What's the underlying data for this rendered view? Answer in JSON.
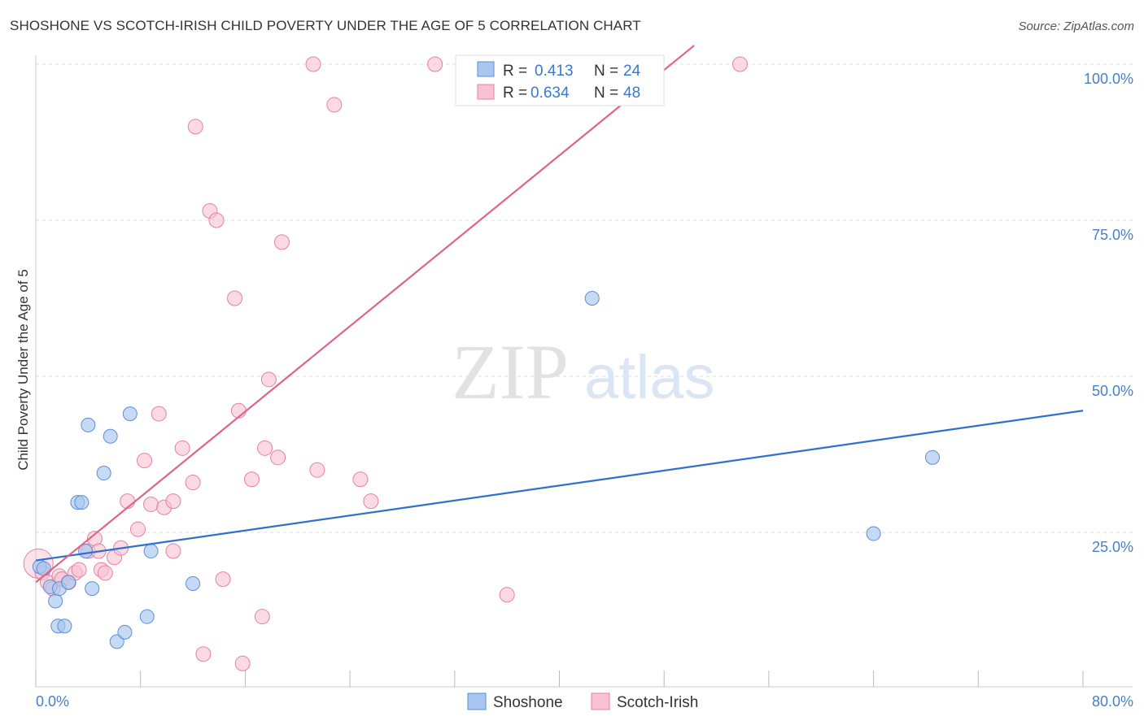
{
  "header": {
    "title": "SHOSHONE VS SCOTCH-IRISH CHILD POVERTY UNDER THE AGE OF 5 CORRELATION CHART",
    "source": "Source: ZipAtlas.com"
  },
  "watermark": {
    "zip": "ZIP",
    "atlas": "atlas"
  },
  "colors": {
    "shoshone_fill": "#a8c6f0",
    "shoshone_stroke": "#5b8fd8",
    "shoshone_line": "#2f6fd0",
    "scotch_fill": "#f8c2d2",
    "scotch_stroke": "#e87fa0",
    "scotch_line": "#e0638a",
    "tick_label": "#4a7fc8",
    "grid": "#dddddd"
  },
  "stats_legend": {
    "rows": [
      {
        "r_label": "R = ",
        "r_value": "0.413",
        "n_label": "N = ",
        "n_value": "24"
      },
      {
        "r_label": "R = ",
        "r_value": "0.634",
        "n_label": "N = ",
        "n_value": "48"
      }
    ]
  },
  "chart_data": {
    "type": "scatter",
    "title": "SHOSHONE VS SCOTCH-IRISH CHILD POVERTY UNDER THE AGE OF 5 CORRELATION CHART",
    "xlabel": "",
    "ylabel": "Child Poverty Under the Age of 5",
    "xlim": [
      0,
      80
    ],
    "ylim": [
      0,
      103
    ],
    "x_tick_labels": [
      "0.0%",
      "80.0%"
    ],
    "y_ticks": [
      25,
      50,
      75,
      100
    ],
    "y_tick_labels": [
      "25.0%",
      "50.0%",
      "75.0%",
      "100.0%"
    ],
    "grid": true,
    "legend_position": "bottom-center",
    "series": [
      {
        "name": "Shoshone",
        "points": [
          [
            0.3,
            19.5
          ],
          [
            0.6,
            19.2
          ],
          [
            1.1,
            16.3
          ],
          [
            1.5,
            14.0
          ],
          [
            1.8,
            16.0
          ],
          [
            1.7,
            10.0
          ],
          [
            2.2,
            10.0
          ],
          [
            2.5,
            17.0
          ],
          [
            3.2,
            29.8
          ],
          [
            3.5,
            29.8
          ],
          [
            3.8,
            22.0
          ],
          [
            4.0,
            42.2
          ],
          [
            4.3,
            16.0
          ],
          [
            5.2,
            34.5
          ],
          [
            5.7,
            40.4
          ],
          [
            6.2,
            7.5
          ],
          [
            6.8,
            9.0
          ],
          [
            7.2,
            44.0
          ],
          [
            8.5,
            11.5
          ],
          [
            8.8,
            22.0
          ],
          [
            12.0,
            16.8
          ],
          [
            42.5,
            62.5
          ],
          [
            64.0,
            24.8
          ],
          [
            68.5,
            37.0
          ]
        ],
        "trend": {
          "x": [
            0,
            80
          ],
          "y": [
            20.5,
            44.5
          ]
        }
      },
      {
        "name": "Scotch-Irish",
        "points": [
          [
            0.2,
            20.0
          ],
          [
            0.5,
            18.5
          ],
          [
            0.9,
            17.0
          ],
          [
            1.3,
            16.0
          ],
          [
            1.8,
            18.0
          ],
          [
            2.0,
            17.5
          ],
          [
            2.5,
            17.0
          ],
          [
            3.0,
            18.5
          ],
          [
            3.3,
            19.0
          ],
          [
            4.0,
            22.0
          ],
          [
            4.5,
            24.0
          ],
          [
            4.8,
            22.0
          ],
          [
            5.0,
            19.0
          ],
          [
            5.3,
            18.5
          ],
          [
            6.0,
            21.0
          ],
          [
            6.5,
            22.5
          ],
          [
            7.0,
            30.0
          ],
          [
            7.8,
            25.5
          ],
          [
            8.3,
            36.5
          ],
          [
            8.8,
            29.5
          ],
          [
            9.4,
            44.0
          ],
          [
            9.8,
            29.0
          ],
          [
            10.5,
            30.0
          ],
          [
            10.5,
            22.0
          ],
          [
            11.2,
            38.5
          ],
          [
            12.0,
            33.0
          ],
          [
            12.2,
            90.0
          ],
          [
            12.8,
            5.5
          ],
          [
            13.3,
            76.5
          ],
          [
            13.8,
            75.0
          ],
          [
            14.3,
            17.5
          ],
          [
            15.2,
            62.5
          ],
          [
            15.5,
            44.5
          ],
          [
            15.8,
            4.0
          ],
          [
            16.5,
            33.5
          ],
          [
            17.3,
            11.5
          ],
          [
            17.5,
            38.5
          ],
          [
            17.8,
            49.5
          ],
          [
            18.5,
            37.0
          ],
          [
            18.8,
            71.5
          ],
          [
            21.2,
            100.0
          ],
          [
            21.5,
            35.0
          ],
          [
            22.8,
            93.5
          ],
          [
            24.8,
            33.5
          ],
          [
            25.6,
            30.0
          ],
          [
            30.5,
            100.0
          ],
          [
            36.0,
            15.0
          ],
          [
            53.8,
            100.0
          ]
        ],
        "trend": {
          "x": [
            0,
            50.3
          ],
          "y": [
            17.0,
            103.0
          ]
        }
      }
    ]
  },
  "bottom_legend": {
    "items": [
      {
        "label": "Shoshone"
      },
      {
        "label": "Scotch-Irish"
      }
    ]
  }
}
